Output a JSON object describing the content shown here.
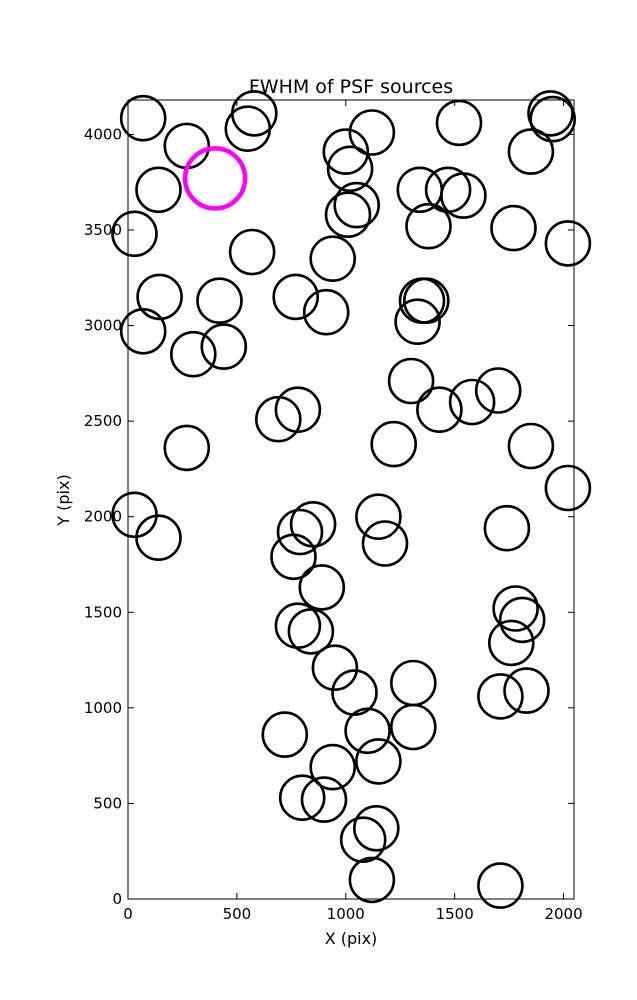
{
  "chart_data": {
    "type": "scatter",
    "title": "FWHM of PSF sources",
    "xlabel": "X (pix)",
    "ylabel": "Y (pix)",
    "xlim": [
      0,
      2048
    ],
    "ylim": [
      0,
      4180
    ],
    "x_ticks": [
      0,
      500,
      1000,
      1500,
      2000
    ],
    "y_ticks": [
      0,
      500,
      1000,
      1500,
      2000,
      2500,
      3000,
      3500,
      4000
    ],
    "grid": false,
    "colors": {
      "normal": "#000000",
      "highlight": "#ff00ff"
    },
    "points": [
      {
        "x": 70,
        "y": 4085
      },
      {
        "x": 270,
        "y": 3940
      },
      {
        "x": 550,
        "y": 4030
      },
      {
        "x": 580,
        "y": 4110
      },
      {
        "x": 1000,
        "y": 3910
      },
      {
        "x": 1020,
        "y": 3820
      },
      {
        "x": 1120,
        "y": 4010
      },
      {
        "x": 1520,
        "y": 4060
      },
      {
        "x": 1940,
        "y": 4110
      },
      {
        "x": 1950,
        "y": 4080
      },
      {
        "x": 1850,
        "y": 3910
      },
      {
        "x": 140,
        "y": 3710
      },
      {
        "x": 30,
        "y": 3480
      },
      {
        "x": 570,
        "y": 3385
      },
      {
        "x": 940,
        "y": 3350
      },
      {
        "x": 1010,
        "y": 3580
      },
      {
        "x": 1050,
        "y": 3630
      },
      {
        "x": 1340,
        "y": 3710
      },
      {
        "x": 1380,
        "y": 3520
      },
      {
        "x": 1470,
        "y": 3710
      },
      {
        "x": 1540,
        "y": 3680
      },
      {
        "x": 1770,
        "y": 3510
      },
      {
        "x": 2020,
        "y": 3430
      },
      {
        "x": 145,
        "y": 3150
      },
      {
        "x": 70,
        "y": 2970
      },
      {
        "x": 420,
        "y": 3130
      },
      {
        "x": 300,
        "y": 2850
      },
      {
        "x": 440,
        "y": 2890
      },
      {
        "x": 770,
        "y": 3150
      },
      {
        "x": 910,
        "y": 3070
      },
      {
        "x": 1350,
        "y": 3130
      },
      {
        "x": 1370,
        "y": 3130
      },
      {
        "x": 1330,
        "y": 3020
      },
      {
        "x": 1300,
        "y": 2710
      },
      {
        "x": 1430,
        "y": 2560
      },
      {
        "x": 1580,
        "y": 2600
      },
      {
        "x": 1700,
        "y": 2660
      },
      {
        "x": 690,
        "y": 2510
      },
      {
        "x": 780,
        "y": 2560
      },
      {
        "x": 270,
        "y": 2360
      },
      {
        "x": 1220,
        "y": 2380
      },
      {
        "x": 1850,
        "y": 2370
      },
      {
        "x": 2020,
        "y": 2150
      },
      {
        "x": 30,
        "y": 2010
      },
      {
        "x": 140,
        "y": 1890
      },
      {
        "x": 850,
        "y": 1960
      },
      {
        "x": 790,
        "y": 1920
      },
      {
        "x": 760,
        "y": 1790
      },
      {
        "x": 890,
        "y": 1630
      },
      {
        "x": 1150,
        "y": 2000
      },
      {
        "x": 1180,
        "y": 1860
      },
      {
        "x": 1740,
        "y": 1940
      },
      {
        "x": 780,
        "y": 1430
      },
      {
        "x": 840,
        "y": 1400
      },
      {
        "x": 950,
        "y": 1210
      },
      {
        "x": 1040,
        "y": 1080
      },
      {
        "x": 1310,
        "y": 1130
      },
      {
        "x": 1780,
        "y": 1520
      },
      {
        "x": 1810,
        "y": 1460
      },
      {
        "x": 1760,
        "y": 1340
      },
      {
        "x": 1710,
        "y": 1060
      },
      {
        "x": 1830,
        "y": 1090
      },
      {
        "x": 720,
        "y": 860
      },
      {
        "x": 940,
        "y": 690
      },
      {
        "x": 1100,
        "y": 880
      },
      {
        "x": 1150,
        "y": 720
      },
      {
        "x": 1310,
        "y": 900
      },
      {
        "x": 800,
        "y": 530
      },
      {
        "x": 900,
        "y": 520
      },
      {
        "x": 1080,
        "y": 310
      },
      {
        "x": 1140,
        "y": 370
      },
      {
        "x": 1120,
        "y": 100
      },
      {
        "x": 1710,
        "y": 70
      }
    ],
    "highlight_point": {
      "x": 400,
      "y": 3770
    }
  }
}
